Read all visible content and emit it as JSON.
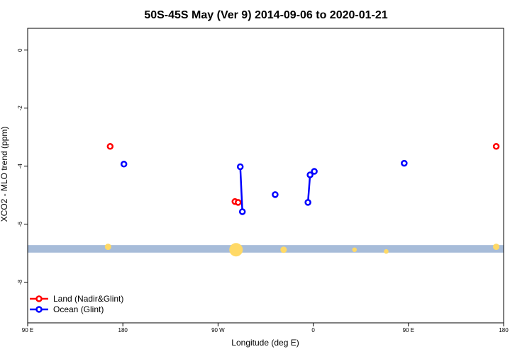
{
  "chart_data": {
    "type": "line",
    "title": "50S-45S May (Ver 9)   2014-09-06 to 2020-01-21",
    "xlabel": "Longitude (deg E)",
    "ylabel": "XCO2 - MLO trend (ppm)",
    "xlim": [
      90,
      450
    ],
    "ylim": [
      -9.4,
      0.75
    ],
    "xticks": [
      {
        "value": 90,
        "label": "90 E"
      },
      {
        "value": 180,
        "label": "180"
      },
      {
        "value": 270,
        "label": "90 W"
      },
      {
        "value": 360,
        "label": "0"
      },
      {
        "value": 450,
        "label": "90 E"
      },
      {
        "value": 540,
        "label": "180"
      }
    ],
    "yticks": [
      {
        "value": 0,
        "label": "0"
      },
      {
        "value": -2,
        "label": "-2"
      },
      {
        "value": -4,
        "label": "-4"
      },
      {
        "value": -6,
        "label": "-6"
      },
      {
        "value": -8,
        "label": "-8"
      }
    ],
    "x_plot_range": [
      90,
      540
    ],
    "series": [
      {
        "name": "Land (Nadir&Glint)",
        "color": "#ff0000",
        "segments": [
          [
            {
              "x": 168,
              "y": -3.32
            }
          ],
          [
            {
              "x": 286,
              "y": -5.22
            },
            {
              "x": 289,
              "y": -5.25
            }
          ],
          [
            {
              "x": 533,
              "y": -3.32
            }
          ]
        ]
      },
      {
        "name": "Ocean (Glint)",
        "color": "#0000ff",
        "segments": [
          [
            {
              "x": 181,
              "y": -3.93
            }
          ],
          [
            {
              "x": 291,
              "y": -4.02
            },
            {
              "x": 293,
              "y": -5.57
            }
          ],
          [
            {
              "x": 324,
              "y": -4.98
            }
          ],
          [
            {
              "x": 355,
              "y": -5.25
            },
            {
              "x": 357,
              "y": -4.3
            },
            {
              "x": 361,
              "y": -4.18
            }
          ],
          [
            {
              "x": 446,
              "y": -3.9
            }
          ]
        ]
      }
    ],
    "band": {
      "y_from": -6.98,
      "y_to": -6.72,
      "color": "#a7bcd9"
    },
    "band_markers": {
      "color": "#ffd966",
      "points": [
        {
          "x": 166,
          "y": -6.78,
          "size": 1
        },
        {
          "x": 287,
          "y": -6.88,
          "size": 3
        },
        {
          "x": 332,
          "y": -6.88,
          "size": 1
        },
        {
          "x": 399,
          "y": -6.88,
          "size": 0.5
        },
        {
          "x": 429,
          "y": -6.94,
          "size": 0.5
        },
        {
          "x": 533,
          "y": -6.78,
          "size": 1
        }
      ]
    },
    "legend_position": "bottom-left",
    "grid": false
  }
}
